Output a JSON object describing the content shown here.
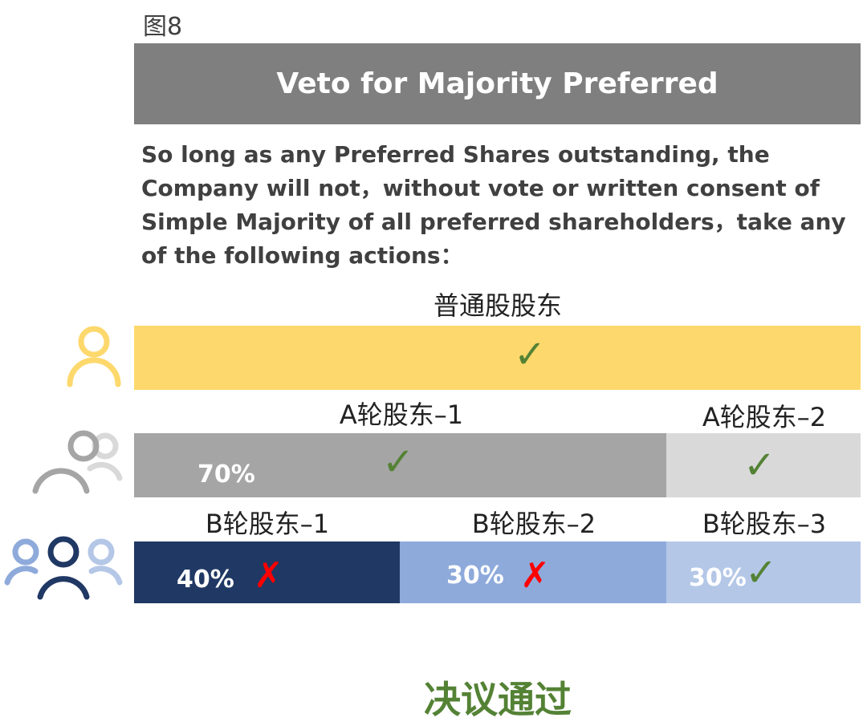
{
  "figure_label": "图8",
  "header": "Veto for Majority Preferred",
  "paragraph": "So long as any Preferred Shares outstanding, the Company will not，without vote or written consent of Simple Majority of all preferred shareholders，take any of the following actions：",
  "colors": {
    "common": "#fdd86c",
    "a1": "#a5a5a5",
    "a2": "#d9d9d9",
    "b1": "#203864",
    "b2": "#8eaadb",
    "b3": "#b4c7e7",
    "approve": "#548235",
    "reject": "#ff0000"
  },
  "rows": {
    "common": {
      "label": "普通股股东",
      "mark": "✓"
    },
    "a1": {
      "label": "A轮股东–1",
      "pct": "70%",
      "mark": "✓"
    },
    "a2": {
      "label": "A轮股东–2",
      "mark": "✓"
    },
    "b1": {
      "label": "B轮股东–1",
      "pct": "40%",
      "mark": "✗"
    },
    "b2": {
      "label": "B轮股东–2",
      "pct": "30%",
      "mark": "✗"
    },
    "b3": {
      "label": "B轮股东–3",
      "pct": "30%",
      "mark": "✓"
    }
  },
  "result": "决议通过"
}
